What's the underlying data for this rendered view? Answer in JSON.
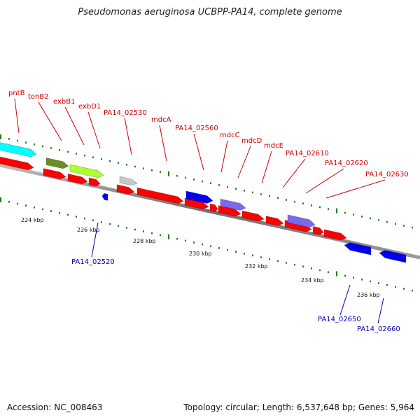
{
  "title": "Pseudomonas aeruginosa UCBPP-PA14, complete genome",
  "accession": "Accession: NC_008463",
  "topology": "Topology: circular; Length: 6,537,648 bp; Genes: 5,964",
  "scale_labels": [
    "224 kbp",
    "226 kbp",
    "228 kbp",
    "230 kbp",
    "232 kbp",
    "234 kbp",
    "236 kbp"
  ],
  "gene_labels_top": [
    "pntB",
    "tonB2",
    "exbB1",
    "exbD1",
    "PA14_02530",
    "mdcA",
    "PA14_02560",
    "mdcC",
    "mdcD",
    "mdcE",
    "PA14_02610",
    "PA14_02620",
    "PA14_02630"
  ],
  "gene_labels_bottom": [
    "PA14_02520",
    "PA14_02650",
    "PA14_02660"
  ],
  "colors": {
    "forward_label": "#cc0000",
    "reverse_label": "#0000aa",
    "red": "#ff0000",
    "cyan": "#00ffff",
    "olive": "#6b8e23",
    "lime": "#adff2f",
    "gray": "#c8c8c8",
    "blue": "#0000ee",
    "slate": "#7b68ee",
    "backbone": "#808080",
    "tick": "#1a7a1a"
  }
}
